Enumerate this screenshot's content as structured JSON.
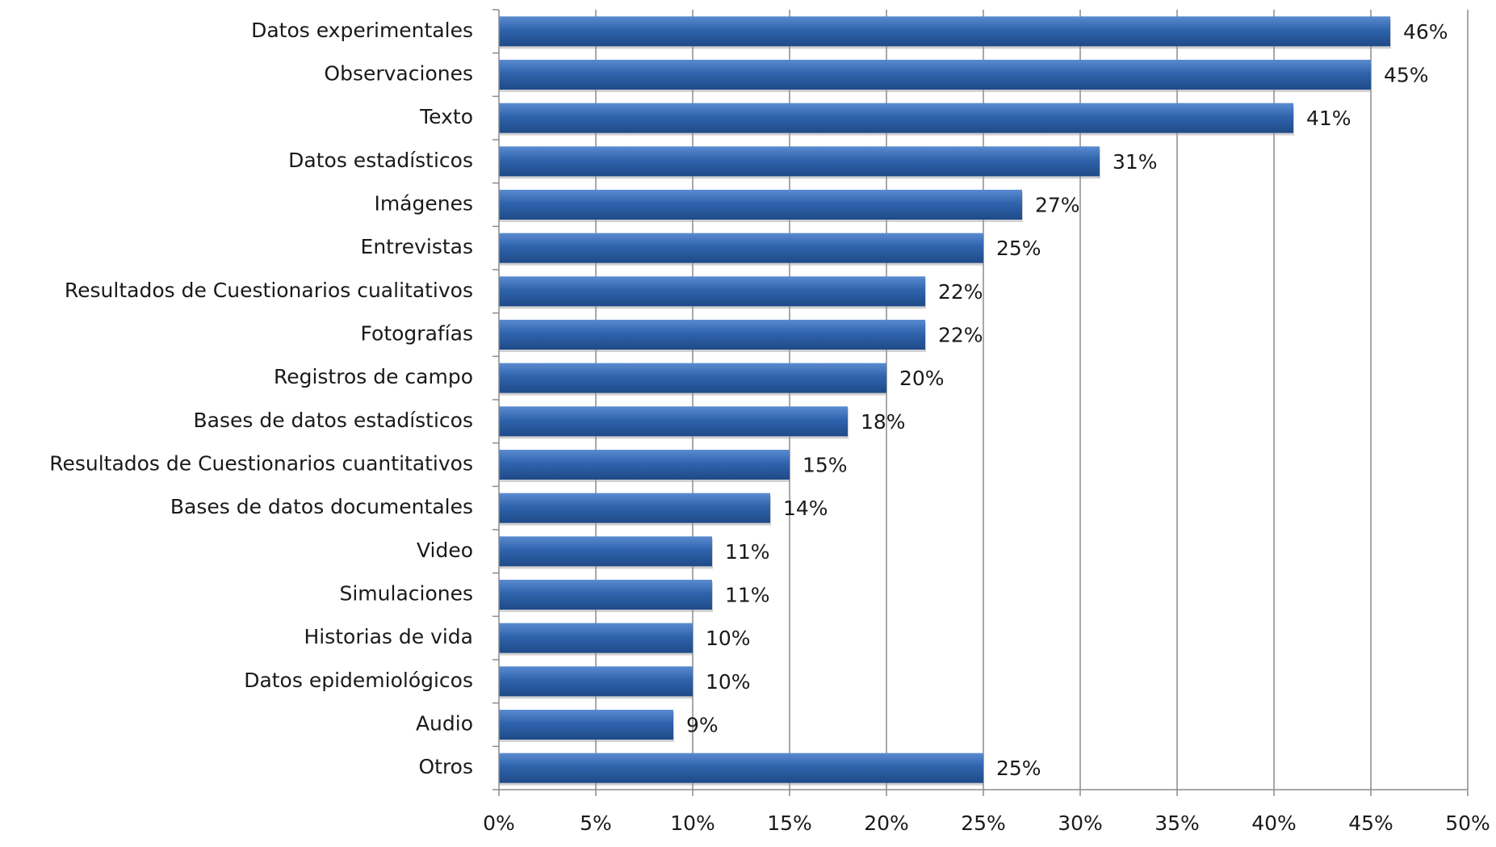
{
  "chart_data": {
    "type": "bar",
    "orientation": "horizontal",
    "title": "",
    "xlabel": "",
    "ylabel": "",
    "categories": [
      "Datos experimentales",
      "Observaciones",
      "Texto",
      "Datos estadísticos",
      "Imágenes",
      "Entrevistas",
      "Resultados de Cuestionarios cualitativos",
      "Fotografías",
      "Registros de campo",
      "Bases de datos estadísticos",
      "Resultados de Cuestionarios cuantitativos",
      "Bases de datos documentales",
      "Video",
      "Simulaciones",
      "Historias de vida",
      "Datos epidemiológicos",
      "Audio",
      "Otros"
    ],
    "values": [
      46,
      45,
      41,
      31,
      27,
      25,
      22,
      22,
      20,
      18,
      15,
      14,
      11,
      11,
      10,
      10,
      9,
      25
    ],
    "value_labels": [
      "46%",
      "45%",
      "41%",
      "31%",
      "27%",
      "25%",
      "22%",
      "22%",
      "20%",
      "18%",
      "15%",
      "14%",
      "11%",
      "11%",
      "10%",
      "10%",
      "9%",
      "25%"
    ],
    "xlim": [
      0,
      50
    ],
    "x_ticks": [
      0,
      5,
      10,
      15,
      20,
      25,
      30,
      35,
      40,
      45,
      50
    ],
    "x_tick_labels": [
      "0%",
      "5%",
      "10%",
      "15%",
      "20%",
      "25%",
      "30%",
      "35%",
      "40%",
      "45%",
      "50%"
    ],
    "grid": true,
    "legend": "none",
    "bar_color": "#2f64ad",
    "bar_color_light": "#5b8bd0",
    "bar_color_dark": "#1f4a87"
  }
}
